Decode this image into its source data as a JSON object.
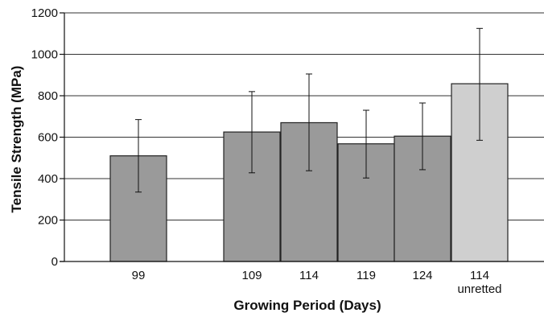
{
  "chart_data": {
    "type": "bar",
    "title": "",
    "xlabel": "Growing Period (Days)",
    "ylabel": "Tensile Strength (MPa)",
    "ylim": [
      0,
      1200
    ],
    "yticks": [
      0,
      200,
      400,
      600,
      800,
      1000,
      1200
    ],
    "grid": "horizontal",
    "categories": [
      {
        "label": "99",
        "sublabel": ""
      },
      {
        "label": "109",
        "sublabel": ""
      },
      {
        "label": "114",
        "sublabel": ""
      },
      {
        "label": "119",
        "sublabel": ""
      },
      {
        "label": "124",
        "sublabel": ""
      },
      {
        "label": "114",
        "sublabel": "unretted"
      }
    ],
    "values": [
      510,
      625,
      670,
      568,
      605,
      858
    ],
    "error_low": [
      335,
      428,
      438,
      403,
      443,
      585
    ],
    "error_high": [
      685,
      820,
      905,
      730,
      765,
      1125
    ],
    "colors": [
      "#9a9a9a",
      "#9a9a9a",
      "#9a9a9a",
      "#9a9a9a",
      "#9a9a9a",
      "#cfcfcf"
    ]
  }
}
